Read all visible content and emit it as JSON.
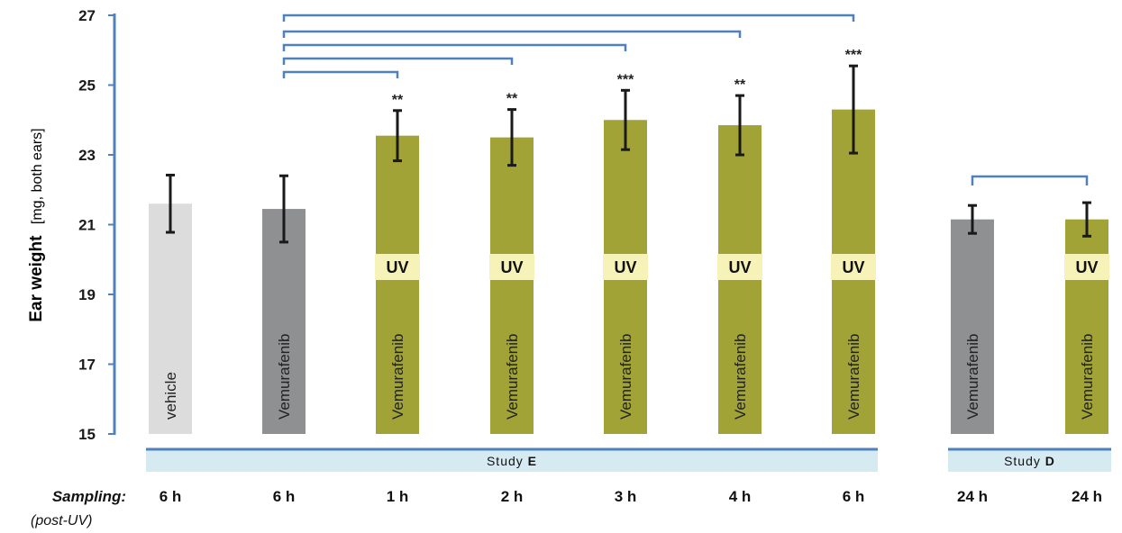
{
  "chart_data": {
    "type": "bar",
    "ylabel_bold": "Ear weight",
    "ylabel_rest": "[mg, both ears]",
    "ylim": [
      15,
      27
    ],
    "yticks": [
      15,
      17,
      19,
      21,
      23,
      25,
      27
    ],
    "categories": [
      "6 h",
      "6 h",
      "1 h",
      "2 h",
      "3 h",
      "4 h",
      "6 h",
      "24 h",
      "24 h"
    ],
    "values": [
      21.6,
      21.45,
      23.55,
      23.5,
      24.0,
      23.85,
      24.3,
      21.15,
      21.15
    ],
    "errors": [
      0.82,
      0.95,
      0.72,
      0.8,
      0.85,
      0.85,
      1.25,
      0.4,
      0.48
    ],
    "bar_labels": [
      "vehicle",
      "Vemurafenib",
      "Vemurafenib",
      "Vemurafenib",
      "Vemurafenib",
      "Vemurafenib",
      "Vemurafenib",
      "Vemurafenib",
      "Vemurafenib"
    ],
    "uv": [
      false,
      false,
      true,
      true,
      true,
      true,
      true,
      false,
      true
    ],
    "uv_label": "UV",
    "significance": [
      "",
      "",
      "**",
      "**",
      "***",
      "**",
      "***",
      "",
      ""
    ],
    "colors": {
      "vehicle": "#dcdcdc",
      "vemurafenib": "#8f9092",
      "vemurafenib_uv": "#a1a336",
      "uv_box": "#f7f3b8",
      "axis": "#4f81bd",
      "study_band": "#d6eaf1",
      "error_bar": "#1a1a1a"
    },
    "bar_colors": [
      "vehicle",
      "vemurafenib",
      "vemurafenib_uv",
      "vemurafenib_uv",
      "vemurafenib_uv",
      "vemurafenib_uv",
      "vemurafenib_uv",
      "vemurafenib",
      "vemurafenib_uv"
    ],
    "brackets": [
      {
        "from": 1,
        "to": 6
      },
      {
        "from": 1,
        "to": 5
      },
      {
        "from": 1,
        "to": 4
      },
      {
        "from": 1,
        "to": 3
      },
      {
        "from": 1,
        "to": 2
      },
      {
        "from": 7,
        "to": 8
      }
    ],
    "studies": [
      {
        "prefix": "Study ",
        "letter": "E",
        "first": 0,
        "last": 6
      },
      {
        "prefix": "Study ",
        "letter": "D",
        "first": 7,
        "last": 8
      }
    ],
    "sampling_label": "Sampling:",
    "sampling_sub": "(post-UV)"
  }
}
